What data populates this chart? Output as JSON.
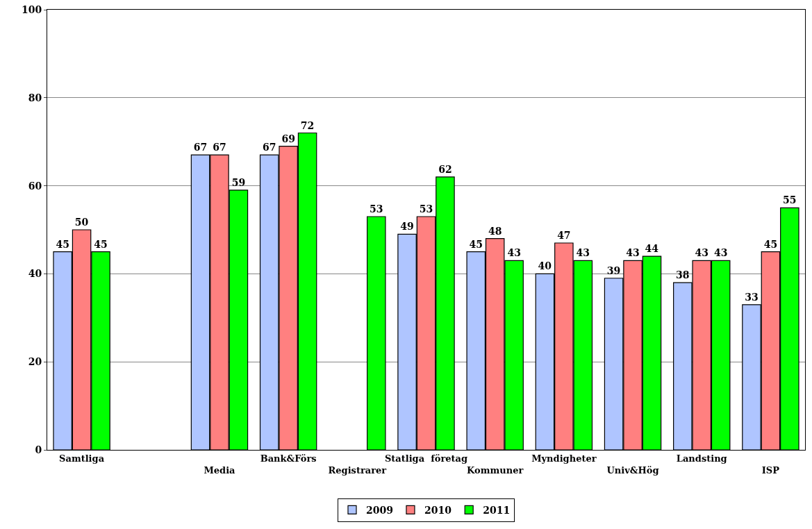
{
  "chart_data": {
    "type": "bar",
    "categories": [
      "Samtliga",
      null,
      "Media",
      "Bank&Förs",
      "Registrarer",
      "Statliga  företag",
      "Kommuner",
      "Myndigheter",
      "Univ&Hög",
      "Landsting",
      "ISP"
    ],
    "series": [
      {
        "name": "2009",
        "color": "#afc5ff",
        "values": [
          45,
          null,
          67,
          67,
          null,
          49,
          45,
          40,
          39,
          38,
          33
        ]
      },
      {
        "name": "2010",
        "color": "#ff8080",
        "values": [
          50,
          null,
          67,
          69,
          null,
          53,
          48,
          47,
          43,
          43,
          45
        ]
      },
      {
        "name": "2011",
        "color": "#00ff00",
        "values": [
          45,
          null,
          59,
          72,
          53,
          62,
          43,
          43,
          44,
          43,
          55
        ]
      }
    ],
    "ylim": [
      0,
      100
    ],
    "yticks": [
      0,
      20,
      40,
      60,
      80,
      100
    ],
    "grid": "y",
    "legend": "bottom",
    "data_labels": true
  }
}
